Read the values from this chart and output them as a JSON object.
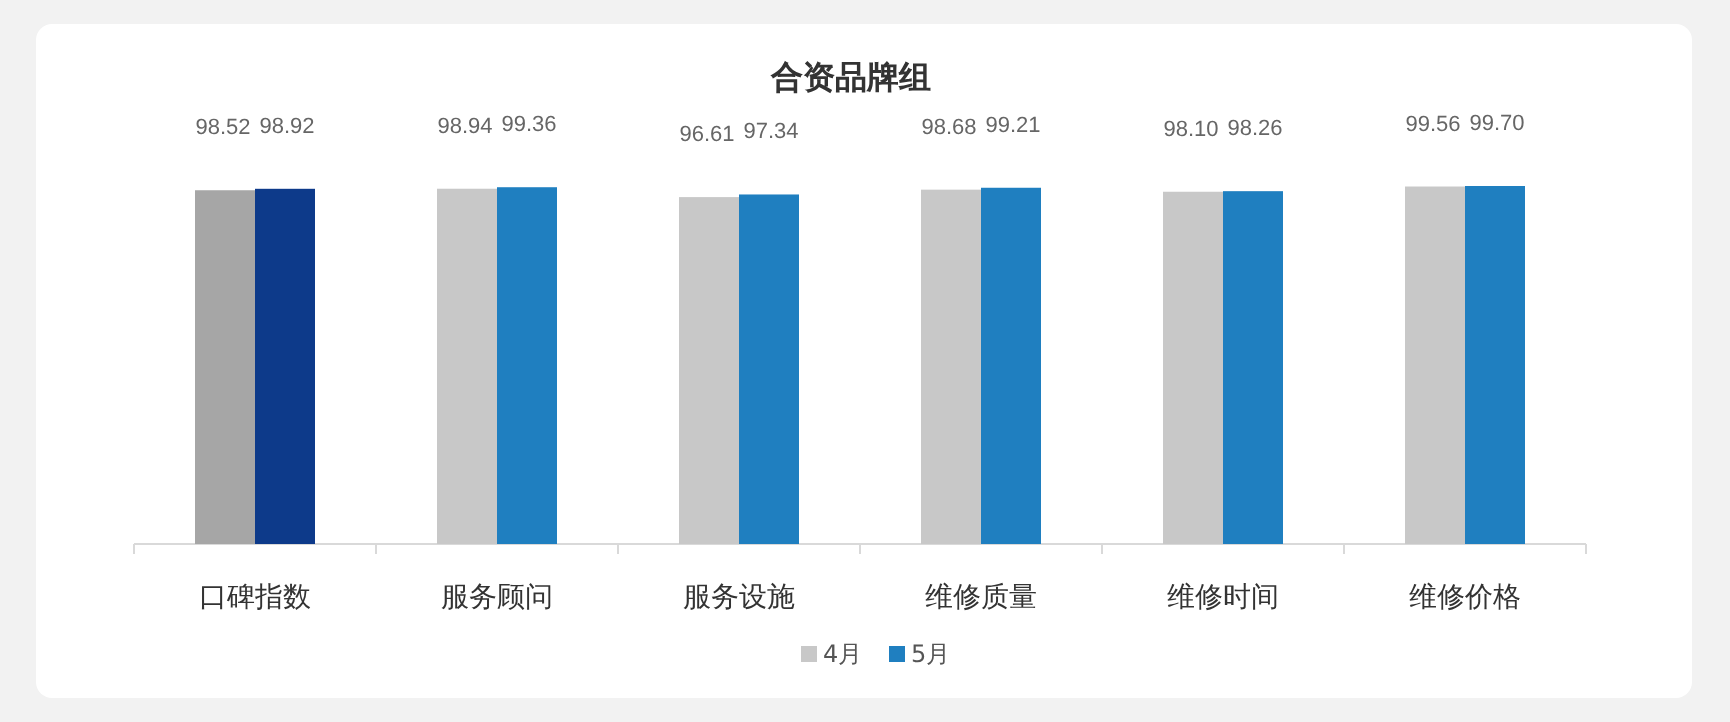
{
  "chart_data": {
    "type": "bar",
    "title": "合资品牌组",
    "categories": [
      "口碑指数",
      "服务顾问",
      "服务设施",
      "维修质量",
      "维修时间",
      "维修价格"
    ],
    "legend": "bottom",
    "series": [
      {
        "name": "4月",
        "color": "#c8c8c8",
        "colors": [
          "#a6a6a6",
          "#c8c8c8",
          "#c8c8c8",
          "#c8c8c8",
          "#c8c8c8",
          "#c8c8c8"
        ],
        "values": [
          98.52,
          98.94,
          96.61,
          98.68,
          98.1,
          99.56
        ],
        "value_labels": [
          "98.52",
          "98.94",
          "96.61",
          "98.68",
          "98.10",
          "99.56"
        ]
      },
      {
        "name": "5月",
        "color": "#1f7fc0",
        "colors": [
          "#0d3a8a",
          "#1f7fc0",
          "#1f7fc0",
          "#1f7fc0",
          "#1f7fc0",
          "#1f7fc0"
        ],
        "values": [
          98.92,
          99.36,
          97.34,
          99.21,
          98.26,
          99.7
        ],
        "value_labels": [
          "98.92",
          "99.36",
          "97.34",
          "99.21",
          "98.26",
          "99.70"
        ]
      }
    ]
  }
}
